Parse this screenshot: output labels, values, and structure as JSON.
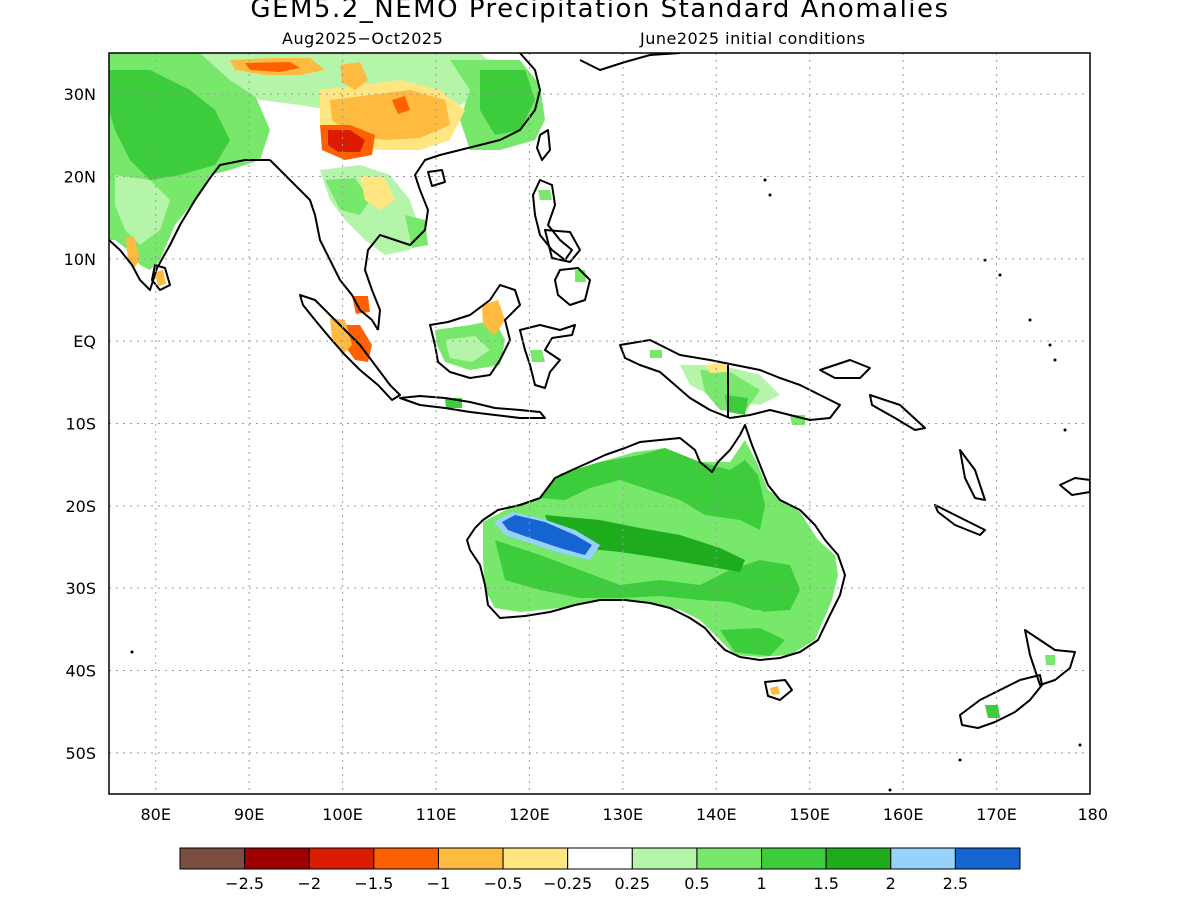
{
  "title": "GEM5.2_NEMO Precipitation Standard Anomalies",
  "subtitle_left": "Aug2025−Oct2025",
  "subtitle_right": "June2025 initial conditions",
  "lat_labels": [
    "30N",
    "20N",
    "10N",
    "EQ",
    "10S",
    "20S",
    "30S",
    "40S",
    "50S"
  ],
  "lat_values": [
    30,
    20,
    10,
    0,
    -10,
    -20,
    -30,
    -40,
    -50
  ],
  "lon_labels": [
    "80E",
    "90E",
    "100E",
    "110E",
    "120E",
    "130E",
    "140E",
    "150E",
    "160E",
    "170E",
    "180"
  ],
  "lon_values": [
    80,
    90,
    100,
    110,
    120,
    130,
    140,
    150,
    160,
    170,
    180
  ],
  "map_extent": {
    "lon": [
      75,
      180
    ],
    "lat": [
      -55,
      35
    ]
  },
  "colorbar": {
    "colors": [
      "#7a4e40",
      "#a00000",
      "#dc1c00",
      "#ff6000",
      "#ffbb40",
      "#ffe680",
      "#ffffff",
      "#b4f5aa",
      "#78e86c",
      "#3ccc3c",
      "#1eac1e",
      "#96d2fa",
      "#1464d2"
    ],
    "labels": [
      "−2.5",
      "−2",
      "−1.5",
      "−1",
      "−0.5",
      "−0.25",
      "0.25",
      "0.5",
      "1",
      "1.5",
      "2",
      "2.5"
    ]
  },
  "colors": {
    "light_green": "#b4f5aa",
    "green": "#78e86c",
    "mid_green": "#3ccc3c",
    "dark_green": "#1eac1e",
    "light_blue": "#96d2fa",
    "blue": "#1464d2",
    "light_yellow": "#ffe680",
    "light_orange": "#ffbb40",
    "orange": "#ff6000",
    "red": "#dc1c00",
    "dark_red": "#a00000"
  }
}
